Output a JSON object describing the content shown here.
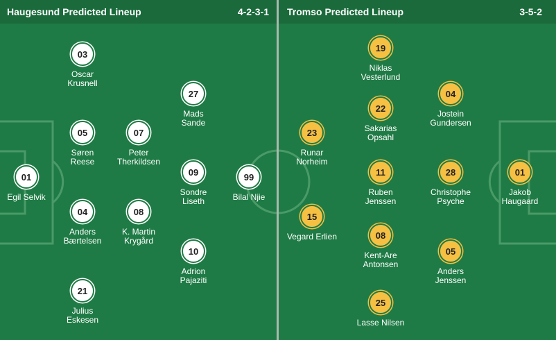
{
  "home": {
    "title": "Haugesund Predicted Lineup",
    "formation": "4-2-3-1",
    "players": [
      {
        "number": "03",
        "name": "Oscar\nKrusnell"
      },
      {
        "number": "05",
        "name": "Søren\nReese"
      },
      {
        "number": "07",
        "name": "Peter\nTherkildsen"
      },
      {
        "number": "01",
        "name": "Egil Selvik"
      },
      {
        "number": "04",
        "name": "Anders\nBærtelsen"
      },
      {
        "number": "08",
        "name": "K. Martin\nKrygård"
      },
      {
        "number": "21",
        "name": "Julius\nEskesen"
      },
      {
        "number": "27",
        "name": "Mads\nSande"
      },
      {
        "number": "09",
        "name": "Sondre\nLiseth"
      },
      {
        "number": "10",
        "name": "Adrion\nPajaziti"
      },
      {
        "number": "99",
        "name": "Bilal Njie"
      }
    ]
  },
  "away": {
    "title": "Tromso Predicted Lineup",
    "formation": "3-5-2",
    "players": [
      {
        "number": "19",
        "name": "Niklas\nVesterlund"
      },
      {
        "number": "22",
        "name": "Sakarias\nOpsahl"
      },
      {
        "number": "04",
        "name": "Jostein\nGundersen"
      },
      {
        "number": "23",
        "name": "Runar\nNorheim"
      },
      {
        "number": "11",
        "name": "Ruben\nJenssen"
      },
      {
        "number": "28",
        "name": "Christophe\nPsyche"
      },
      {
        "number": "01",
        "name": "Jakob\nHaugaard"
      },
      {
        "number": "15",
        "name": "Vegard Erlien"
      },
      {
        "number": "08",
        "name": "Kent-Are\nAntonsen"
      },
      {
        "number": "05",
        "name": "Anders\nJenssen"
      },
      {
        "number": "25",
        "name": "Lasse Nilsen"
      }
    ]
  },
  "colors": {
    "pitch": "#1f7b45",
    "header": "#1a6a3b",
    "home_disc": "#ffffff",
    "away_disc": "#f6c043"
  }
}
